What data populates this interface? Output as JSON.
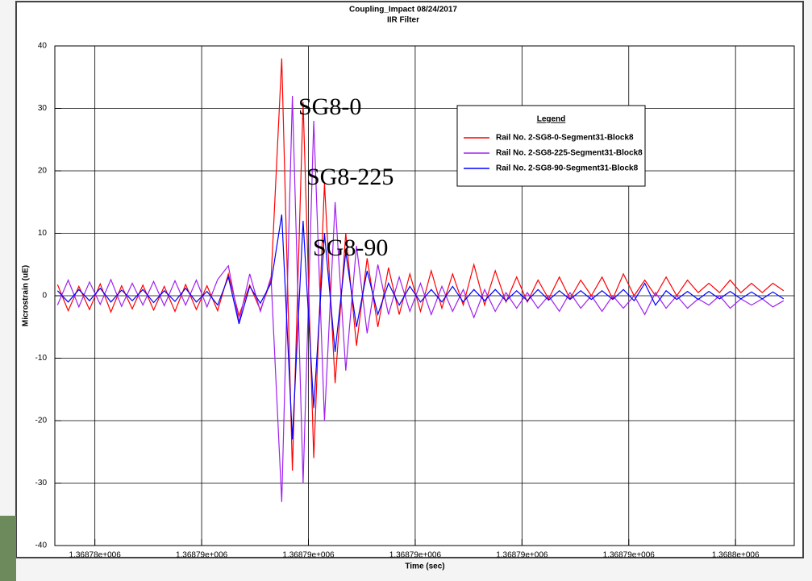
{
  "chart_data": {
    "type": "line",
    "title": "Coupling_Impact 08/24/2017",
    "subtitle": "IIR Filter",
    "x_label": "Time (sec)",
    "y_label": "Microstrain (uE)",
    "legend_title": "Legend",
    "legend": "upper right",
    "grid": true,
    "xlim": [
      1368783.25,
      1368797.1
    ],
    "ylim": [
      -40,
      40
    ],
    "xticks": [
      {
        "value": 1368784,
        "label": "1.36878e+006"
      },
      {
        "value": 1368786,
        "label": "1.36879e+006"
      },
      {
        "value": 1368788,
        "label": "1.36879e+006"
      },
      {
        "value": 1368790,
        "label": "1.36879e+006"
      },
      {
        "value": 1368792,
        "label": "1.36879e+006"
      },
      {
        "value": 1368794,
        "label": "1.36879e+006"
      },
      {
        "value": 1368796,
        "label": "1.3688e+006"
      }
    ],
    "yticks": [
      -40,
      -30,
      -20,
      -10,
      0,
      10,
      20,
      30,
      40
    ],
    "x": [
      1368783.3,
      1368783.5,
      1368783.7,
      1368783.9,
      1368784.1,
      1368784.3,
      1368784.5,
      1368784.7,
      1368784.9,
      1368785.1,
      1368785.3,
      1368785.5,
      1368785.7,
      1368785.9,
      1368786.1,
      1368786.3,
      1368786.5,
      1368786.7,
      1368786.9,
      1368787.1,
      1368787.3,
      1368787.5,
      1368787.7,
      1368787.9,
      1368788.1,
      1368788.3,
      1368788.5,
      1368788.7,
      1368788.9,
      1368789.1,
      1368789.3,
      1368789.5,
      1368789.7,
      1368789.9,
      1368790.1,
      1368790.3,
      1368790.5,
      1368790.7,
      1368790.9,
      1368791.1,
      1368791.3,
      1368791.5,
      1368791.7,
      1368791.9,
      1368792.1,
      1368792.3,
      1368792.5,
      1368792.7,
      1368792.9,
      1368793.1,
      1368793.3,
      1368793.5,
      1368793.7,
      1368793.9,
      1368794.1,
      1368794.3,
      1368794.5,
      1368794.7,
      1368794.9,
      1368795.1,
      1368795.3,
      1368795.5,
      1368795.7,
      1368795.9,
      1368796.1,
      1368796.3,
      1368796.5,
      1368796.7,
      1368796.9
    ],
    "series": [
      {
        "name": "Rail No. 2-SG8-0-Segment31-Block8",
        "color": "#ff0000",
        "values": [
          1.8,
          -2.4,
          1.5,
          -2.2,
          1.9,
          -2.6,
          1.6,
          -2.1,
          1.7,
          -2.3,
          1.5,
          -2.5,
          1.8,
          -2.2,
          1.6,
          -2.4,
          3.5,
          -3.2,
          1.7,
          -2.3,
          2.5,
          38,
          -28,
          31,
          -26,
          18,
          -14,
          10,
          -8,
          6,
          -5,
          4.5,
          -3,
          3.5,
          -2.5,
          4,
          -2,
          3.5,
          -1.5,
          5,
          -1.5,
          4,
          -1,
          3,
          -1,
          2.5,
          -0.5,
          3,
          -0.5,
          2.5,
          0,
          3,
          -0.5,
          3.5,
          0,
          2.5,
          0,
          3,
          0,
          2.5,
          0.5,
          2,
          0.5,
          2.5,
          0.5,
          2,
          0.5,
          2,
          0.8
        ]
      },
      {
        "name": "Rail No. 2-SG8-225-Segment31-Block8",
        "color": "#a020f0",
        "values": [
          -1.5,
          2.5,
          -1.8,
          2.2,
          -1.4,
          2.6,
          -1.7,
          2,
          -1.5,
          2.3,
          -1.6,
          2.4,
          -1.5,
          2.5,
          -1.8,
          2.6,
          4.8,
          -4.2,
          3.5,
          -2.5,
          3,
          -33,
          32,
          -30,
          28,
          -20,
          15,
          -12,
          8,
          -6,
          5,
          -3,
          3,
          -2.5,
          2,
          -3,
          1.5,
          -2.5,
          1,
          -3.5,
          1,
          -2.5,
          0.5,
          -2,
          0.5,
          -2,
          0,
          -2.5,
          0.5,
          -2,
          0,
          -2.5,
          0,
          -2,
          0,
          -3,
          0.5,
          -2,
          0,
          -2,
          -0.5,
          -1.5,
          0,
          -2,
          -0.5,
          -1.5,
          -0.5,
          -1.8,
          -0.8
        ]
      },
      {
        "name": "Rail No. 2-SG8-90-Segment31-Block8",
        "color": "#0000ff",
        "values": [
          0.8,
          -1,
          1,
          -0.8,
          1.2,
          -1,
          0.9,
          -0.8,
          1,
          -1.1,
          0.8,
          -0.9,
          1.2,
          -1,
          0.7,
          -1.5,
          3,
          -4.5,
          1.5,
          -1.2,
          2,
          13,
          -23,
          12,
          -18,
          10,
          -9,
          7,
          -5,
          4,
          -3,
          2,
          -1.5,
          1.5,
          -1,
          1,
          -1,
          1.5,
          -1,
          1,
          -0.8,
          1,
          -0.8,
          0.8,
          -0.8,
          1,
          -0.7,
          0.8,
          -0.6,
          0.8,
          -0.6,
          0.8,
          -0.6,
          1,
          -0.8,
          2,
          -1.5,
          0.8,
          -0.6,
          0.7,
          -0.6,
          0.7,
          -0.5,
          0.7,
          -0.5,
          0.6,
          -0.5,
          0.6,
          -0.5
        ]
      }
    ],
    "annotations": [
      {
        "text": "SG8-0",
        "color": "#c00000"
      },
      {
        "text": "SG8-225",
        "color": "#d040d0"
      },
      {
        "text": "SG8-90",
        "color": "#1010e0"
      }
    ]
  }
}
